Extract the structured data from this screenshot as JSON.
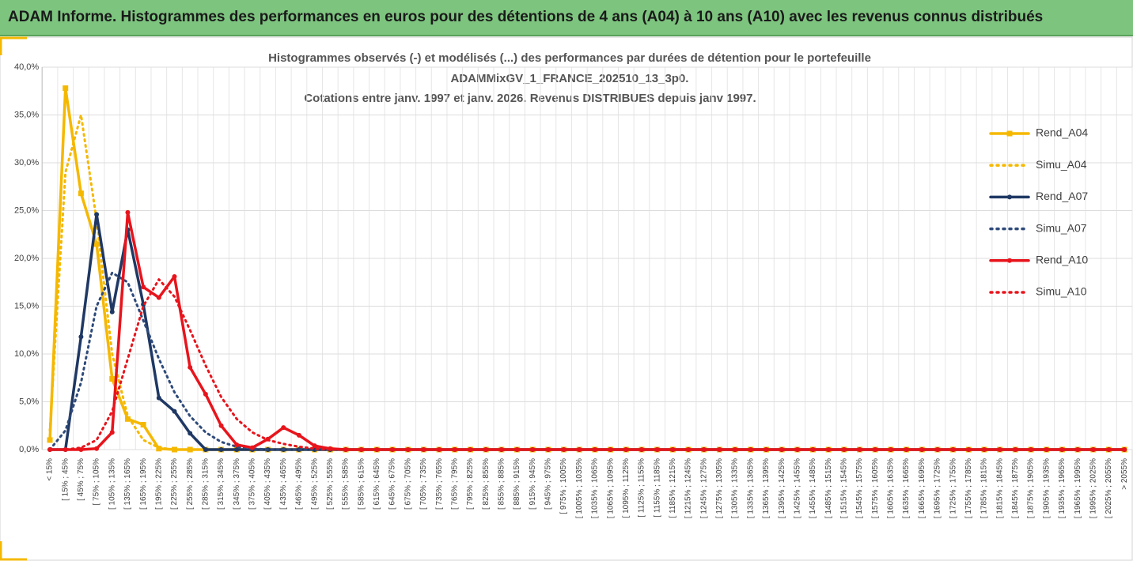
{
  "header": {
    "title": "ADAM Informe. Histogrammes des performances en euros pour des détentions de 4 ans (A04) à 10 ans (A10) avec les revenus connus distribués"
  },
  "chart_data": {
    "type": "line",
    "title": [
      "Histogrammes observés (-) et modélisés (...) des performances par durées de détention pour le portefeuille",
      "ADAMMixGV_1_FRANCE_202510_13_3p0.",
      "Cotations entre janv. 1997 et janv. 2026. Revenus DISTRIBUES depuis janv 1997."
    ],
    "categories": [
      "< 15%",
      "[ 15% ; 45%",
      "[ 45% ; 75%",
      "[ 75% ; 105%",
      "[ 105% ; 135%",
      "[ 135% ; 165%",
      "[ 165% ; 195%",
      "[ 195% ; 225%",
      "[ 225% ; 255%",
      "[ 255% ; 285%",
      "[ 285% ; 315%",
      "[ 315% ; 345%",
      "[ 345% ; 375%",
      "[ 375% ; 405%",
      "[ 405% ; 435%",
      "[ 435% ; 465%",
      "[ 465% ; 495%",
      "[ 495% ; 525%",
      "[ 525% ; 555%",
      "[ 555% ; 585%",
      "[ 585% ; 615%",
      "[ 615% ; 645%",
      "[ 645% ; 675%",
      "[ 675% ; 705%",
      "[ 705% ; 735%",
      "[ 735% ; 765%",
      "[ 765% ; 795%",
      "[ 795% ; 825%",
      "[ 825% ; 855%",
      "[ 855% ; 885%",
      "[ 885% ; 915%",
      "[ 915% ; 945%",
      "[ 945% ; 975%",
      "[ 975% ; 1005%",
      "[ 1005% ; 1035%",
      "[ 1035% ; 1065%",
      "[ 1065% ; 1095%",
      "[ 1095% ; 1125%",
      "[ 1125% ; 1155%",
      "[ 1155% ; 1185%",
      "[ 1185% ; 1215%",
      "[ 1215% ; 1245%",
      "[ 1245% ; 1275%",
      "[ 1275% ; 1305%",
      "[ 1305% ; 1335%",
      "[ 1335% ; 1365%",
      "[ 1365% ; 1395%",
      "[ 1395% ; 1425%",
      "[ 1425% ; 1455%",
      "[ 1455% ; 1485%",
      "[ 1485% ; 1515%",
      "[ 1515% ; 1545%",
      "[ 1545% ; 1575%",
      "[ 1575% ; 1605%",
      "[ 1605% ; 1635%",
      "[ 1635% ; 1665%",
      "[ 1665% ; 1695%",
      "[ 1695% ; 1725%",
      "[ 1725% ; 1755%",
      "[ 1755% ; 1785%",
      "[ 1785% ; 1815%",
      "[ 1815% ; 1845%",
      "[ 1845% ; 1875%",
      "[ 1875% ; 1905%",
      "[ 1905% ; 1935%",
      "[ 1935% ; 1965%",
      "[ 1965% ; 1995%",
      "[ 1995% ; 2025%",
      "[ 2025% ; 2055%",
      "> 2055%"
    ],
    "series": [
      {
        "name": "Rend_A04",
        "color": "#f5b800",
        "dash": false,
        "marker": "square",
        "values": [
          1.0,
          37.8,
          26.8,
          21.5,
          7.4,
          3.2,
          2.6,
          0.1,
          0,
          0,
          0,
          0,
          0,
          0,
          0,
          0,
          0,
          0,
          0,
          0,
          0,
          0,
          0,
          0,
          0,
          0,
          0,
          0,
          0,
          0,
          0,
          0,
          0,
          0,
          0,
          0,
          0,
          0,
          0,
          0,
          0,
          0,
          0,
          0,
          0,
          0,
          0,
          0,
          0,
          0,
          0,
          0,
          0,
          0,
          0,
          0,
          0,
          0,
          0,
          0,
          0,
          0,
          0,
          0,
          0,
          0,
          0,
          0,
          0,
          0
        ]
      },
      {
        "name": "Simu_A04",
        "color": "#f5b800",
        "dash": true,
        "marker": null,
        "values": [
          2,
          29,
          35,
          24,
          10,
          3.5,
          1,
          0.2,
          0,
          0,
          0,
          0,
          0,
          0,
          0,
          0,
          0,
          0,
          0,
          0,
          0,
          0,
          0,
          0,
          0,
          0,
          0,
          0,
          0,
          0,
          0,
          0,
          0,
          0,
          0,
          0,
          0,
          0,
          0,
          0,
          0,
          0,
          0,
          0,
          0,
          0,
          0,
          0,
          0,
          0,
          0,
          0,
          0,
          0,
          0,
          0,
          0,
          0,
          0,
          0,
          0,
          0,
          0,
          0,
          0,
          0,
          0,
          0,
          0,
          0
        ]
      },
      {
        "name": "Rend_A07",
        "color": "#1f3864",
        "dash": false,
        "marker": "circle",
        "values": [
          0,
          0,
          11.8,
          24.6,
          14.4,
          23.0,
          15.2,
          5.4,
          4.0,
          1.7,
          0,
          0,
          0,
          0,
          0,
          0,
          0,
          0,
          0,
          0,
          0,
          0,
          0,
          0,
          0,
          0,
          0,
          0,
          0,
          0,
          0,
          0,
          0,
          0,
          0,
          0,
          0,
          0,
          0,
          0,
          0,
          0,
          0,
          0,
          0,
          0,
          0,
          0,
          0,
          0,
          0,
          0,
          0,
          0,
          0,
          0,
          0,
          0,
          0,
          0,
          0,
          0,
          0,
          0,
          0,
          0,
          0,
          0,
          0,
          0
        ]
      },
      {
        "name": "Simu_A07",
        "color": "#2e4a7a",
        "dash": true,
        "marker": null,
        "values": [
          0,
          2,
          7,
          15,
          18.5,
          17.5,
          13.5,
          9.5,
          6,
          3.5,
          1.8,
          0.8,
          0.3,
          0.1,
          0,
          0,
          0,
          0,
          0,
          0,
          0,
          0,
          0,
          0,
          0,
          0,
          0,
          0,
          0,
          0,
          0,
          0,
          0,
          0,
          0,
          0,
          0,
          0,
          0,
          0,
          0,
          0,
          0,
          0,
          0,
          0,
          0,
          0,
          0,
          0,
          0,
          0,
          0,
          0,
          0,
          0,
          0,
          0,
          0,
          0,
          0,
          0,
          0,
          0,
          0,
          0,
          0,
          0,
          0,
          0
        ]
      },
      {
        "name": "Rend_A10",
        "color": "#e8141c",
        "dash": false,
        "marker": "circle",
        "values": [
          0,
          0,
          0,
          0.1,
          1.8,
          24.8,
          17.0,
          15.9,
          18.1,
          8.6,
          5.8,
          2.5,
          0.5,
          0.2,
          1.1,
          2.3,
          1.5,
          0.4,
          0.1,
          0,
          0,
          0,
          0,
          0,
          0,
          0,
          0,
          0,
          0,
          0,
          0,
          0,
          0,
          0,
          0,
          0,
          0,
          0,
          0,
          0,
          0,
          0,
          0,
          0,
          0,
          0,
          0,
          0,
          0,
          0,
          0,
          0,
          0,
          0,
          0,
          0,
          0,
          0,
          0,
          0,
          0,
          0,
          0,
          0,
          0,
          0,
          0,
          0,
          0,
          0
        ]
      },
      {
        "name": "Simu_A10",
        "color": "#e8141c",
        "dash": true,
        "marker": null,
        "values": [
          0,
          0,
          0.2,
          1,
          4,
          9.5,
          15,
          17.8,
          16,
          12.5,
          8.8,
          5.5,
          3.2,
          1.8,
          1,
          0.6,
          0.3,
          0.1,
          0,
          0,
          0,
          0,
          0,
          0,
          0,
          0,
          0,
          0,
          0,
          0,
          0,
          0,
          0,
          0,
          0,
          0,
          0,
          0,
          0,
          0,
          0,
          0,
          0,
          0,
          0,
          0,
          0,
          0,
          0,
          0,
          0,
          0,
          0,
          0,
          0,
          0,
          0,
          0,
          0,
          0,
          0,
          0,
          0,
          0,
          0,
          0,
          0,
          0,
          0,
          0
        ]
      }
    ],
    "ylim": [
      0,
      40
    ],
    "yticks": [
      {
        "value": 0,
        "label": "0,0%"
      },
      {
        "value": 5,
        "label": "5,0%"
      },
      {
        "value": 10,
        "label": "10,0%"
      },
      {
        "value": 15,
        "label": "15,0%"
      },
      {
        "value": 20,
        "label": "20,0%"
      },
      {
        "value": 25,
        "label": "25,0%"
      },
      {
        "value": 30,
        "label": "30,0%"
      },
      {
        "value": 35,
        "label": "35,0%"
      },
      {
        "value": 40,
        "label": "40,0%"
      }
    ],
    "grid": true,
    "legend": "right"
  }
}
